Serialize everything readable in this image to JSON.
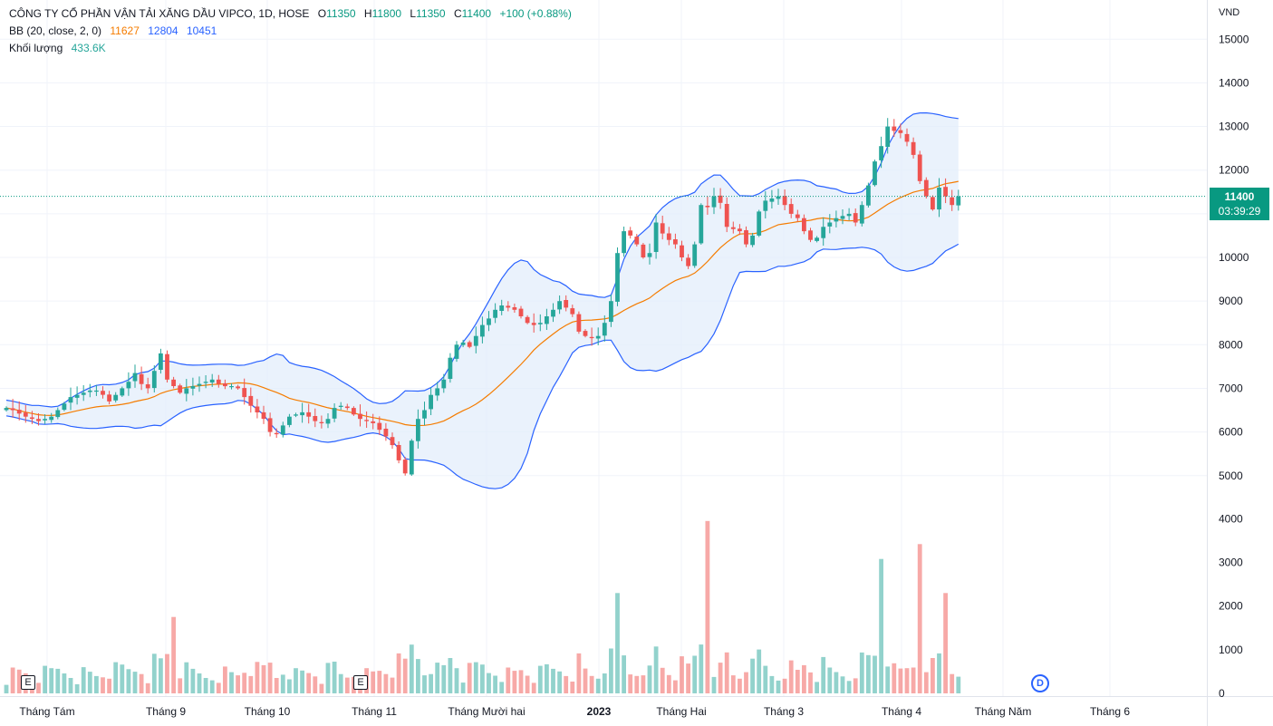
{
  "legend": {
    "title": "CÔNG TY CỔ PHẦN VẬN TẢI XĂNG DẦU VIPCO, 1D, HOSE",
    "open_label": "O",
    "open": "11350",
    "high_label": "H",
    "high": "11800",
    "low_label": "L",
    "low": "11350",
    "close_label": "C",
    "close": "11400",
    "change": "+100 (+0.88%)",
    "bb_label": "BB (20, close, 2, 0)",
    "bb_basis": "11627",
    "bb_upper": "12804",
    "bb_lower": "10451",
    "volume_label": "Khối lượng",
    "volume_value": "433.6K"
  },
  "currency": "VND",
  "last_price": {
    "price": "11400",
    "countdown": "03:39:29"
  },
  "markers": {
    "earnings_1": "E",
    "earnings_2": "E",
    "dividend": "D"
  },
  "colors": {
    "up": "#26a69a",
    "down": "#ef5350",
    "basis": "#f57c00",
    "band": "#2962ff",
    "band_fill": "#e3eefb"
  },
  "chart_data": {
    "type": "candlestick",
    "price_axis": {
      "min": 5000,
      "max": 15000,
      "ticks": [
        5000,
        6000,
        7000,
        8000,
        9000,
        10000,
        11000,
        12000,
        13000,
        14000,
        15000
      ]
    },
    "volume_axis": {
      "min": 0,
      "max": 4000,
      "ticks": [
        0,
        1000,
        2000,
        3000,
        4000
      ]
    },
    "x_labels": [
      "Tháng Tám",
      "Tháng 9",
      "Tháng 10",
      "Tháng 11",
      "Tháng Mười hai",
      "2023",
      "Tháng Hai",
      "Tháng 3",
      "Tháng 4",
      "Tháng Năm",
      "Tháng 6"
    ],
    "close": [
      6550,
      6500,
      6420,
      6350,
      6300,
      6250,
      6300,
      6350,
      6500,
      6650,
      6800,
      6850,
      6900,
      6950,
      6950,
      6850,
      6700,
      6850,
      7000,
      7150,
      7350,
      7100,
      7000,
      7400,
      7800,
      7200,
      7050,
      6900,
      7000,
      7050,
      7100,
      7150,
      7200,
      7100,
      7050,
      7050,
      7000,
      6800,
      6600,
      6450,
      6300,
      6000,
      5950,
      6150,
      6350,
      6400,
      6450,
      6350,
      6250,
      6200,
      6300,
      6550,
      6600,
      6550,
      6400,
      6300,
      6250,
      6200,
      6050,
      5900,
      5700,
      5350,
      5050,
      5800,
      6300,
      6500,
      6850,
      7000,
      7200,
      7700,
      8000,
      8050,
      7950,
      8200,
      8450,
      8600,
      8800,
      8900,
      8850,
      8800,
      8650,
      8500,
      8450,
      8500,
      8650,
      8800,
      9000,
      8850,
      8700,
      8300,
      8200,
      8150,
      8200,
      8500,
      9000,
      10100,
      10600,
      10500,
      10300,
      10000,
      10100,
      10800,
      10550,
      10400,
      10300,
      10000,
      9800,
      10300,
      11200,
      11150,
      11400,
      11250,
      10700,
      10650,
      10600,
      10300,
      10500,
      11050,
      11300,
      11350,
      11400,
      11200,
      11000,
      10900,
      10600,
      10400,
      10450,
      10700,
      10800,
      10900,
      10950,
      11000,
      10800,
      11200,
      11650,
      12200,
      12550,
      13000,
      12900,
      12850,
      12650,
      12350,
      11750,
      11400,
      11100,
      11600,
      11400,
      11200,
      11400
    ]
  }
}
